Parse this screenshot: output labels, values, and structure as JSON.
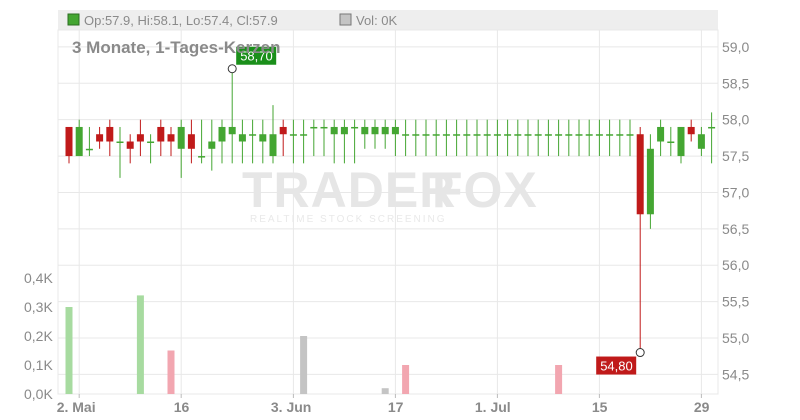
{
  "header": {
    "ohlc": "Op:57.9, Hi:58.1, Lo:57.4, Cl:57.9",
    "vol": "Vol: 0K",
    "subtitle": "3 Monate, 1-Tages-Kerzen"
  },
  "watermark": {
    "brand_left": "TRADER",
    "brand_right": "FOX",
    "tagline": "REALTIME STOCK SCREENING"
  },
  "colors": {
    "up": "#44a632",
    "down": "#c01a1a",
    "grid": "#e8e8e8",
    "vol_up": "#a7dba0",
    "vol_down": "#f2a6b0",
    "vol_neutral": "#c4c4c4",
    "header_bg": "#eeeeee",
    "text": "#8a8a8a"
  },
  "chart_data": {
    "type": "candlestick",
    "title": "3 Monate, 1-Tages-Kerzen",
    "price_axis": {
      "ticks": [
        "59,0",
        "58,5",
        "58,0",
        "57,5",
        "57,0",
        "56,5",
        "56,0",
        "55,5",
        "55,0",
        "54,5"
      ],
      "min": 54.45,
      "max": 59.15
    },
    "volume_axis": {
      "ticks": [
        "0,4K",
        "0,3K",
        "0,2K",
        "0,1K",
        "0,0K"
      ],
      "max": 0.4
    },
    "x_ticks": [
      "2. Mai",
      "16",
      "3. Jun",
      "17",
      "1. Jul",
      "15",
      "29"
    ],
    "x_tick_index": [
      1,
      11,
      22,
      32,
      42,
      52,
      62
    ],
    "annotations": [
      {
        "label": "58,70",
        "value": 58.7,
        "index": 16,
        "type": "high"
      },
      {
        "label": "54,80",
        "value": 54.8,
        "index": 56,
        "type": "low"
      }
    ],
    "candles": [
      [
        57.9,
        57.9,
        57.4,
        57.5
      ],
      [
        57.5,
        58.0,
        57.5,
        57.9
      ],
      [
        57.6,
        57.9,
        57.5,
        57.6
      ],
      [
        57.8,
        57.9,
        57.6,
        57.7
      ],
      [
        57.9,
        58.0,
        57.5,
        57.7
      ],
      [
        57.7,
        57.9,
        57.2,
        57.7
      ],
      [
        57.7,
        57.8,
        57.4,
        57.6
      ],
      [
        57.8,
        58.0,
        57.5,
        57.7
      ],
      [
        57.7,
        57.8,
        57.4,
        57.7
      ],
      [
        57.9,
        58.0,
        57.5,
        57.7
      ],
      [
        57.8,
        57.9,
        57.5,
        57.7
      ],
      [
        57.6,
        58.0,
        57.2,
        57.9
      ],
      [
        57.8,
        58.0,
        57.4,
        57.6
      ],
      [
        57.5,
        58.0,
        57.4,
        57.5
      ],
      [
        57.6,
        58.0,
        57.3,
        57.7
      ],
      [
        57.7,
        58.0,
        57.4,
        57.9
      ],
      [
        57.8,
        58.7,
        57.4,
        57.9
      ],
      [
        57.7,
        58.0,
        57.4,
        57.8
      ],
      [
        57.8,
        58.0,
        57.4,
        57.8
      ],
      [
        57.7,
        58.0,
        57.4,
        57.8
      ],
      [
        57.5,
        58.2,
        57.4,
        57.8
      ],
      [
        57.9,
        58.0,
        57.5,
        57.8
      ],
      [
        57.8,
        58.0,
        57.4,
        57.8
      ],
      [
        57.8,
        58.0,
        57.4,
        57.8
      ],
      [
        57.9,
        58.0,
        57.5,
        57.9
      ],
      [
        57.9,
        58.0,
        57.5,
        57.9
      ],
      [
        57.8,
        58.0,
        57.4,
        57.9
      ],
      [
        57.8,
        58.0,
        57.4,
        57.9
      ],
      [
        57.9,
        58.0,
        57.4,
        57.9
      ],
      [
        57.8,
        58.0,
        57.6,
        57.9
      ],
      [
        57.8,
        58.0,
        57.6,
        57.9
      ],
      [
        57.8,
        58.0,
        57.6,
        57.9
      ],
      [
        57.8,
        58.0,
        57.5,
        57.9
      ],
      [
        57.8,
        58.0,
        57.5,
        57.8
      ],
      [
        57.8,
        58.0,
        57.5,
        57.8
      ],
      [
        57.8,
        58.0,
        57.5,
        57.8
      ],
      [
        57.8,
        58.0,
        57.5,
        57.8
      ],
      [
        57.8,
        58.0,
        57.5,
        57.8
      ],
      [
        57.8,
        58.0,
        57.5,
        57.8
      ],
      [
        57.8,
        58.0,
        57.5,
        57.8
      ],
      [
        57.8,
        58.0,
        57.5,
        57.8
      ],
      [
        57.8,
        58.0,
        57.5,
        57.8
      ],
      [
        57.8,
        58.0,
        57.5,
        57.8
      ],
      [
        57.8,
        58.0,
        57.5,
        57.8
      ],
      [
        57.8,
        58.0,
        57.5,
        57.8
      ],
      [
        57.8,
        58.0,
        57.5,
        57.8
      ],
      [
        57.8,
        58.0,
        57.5,
        57.8
      ],
      [
        57.8,
        58.0,
        57.5,
        57.8
      ],
      [
        57.8,
        58.0,
        57.5,
        57.8
      ],
      [
        57.8,
        58.0,
        57.5,
        57.8
      ],
      [
        57.8,
        58.0,
        57.5,
        57.8
      ],
      [
        57.8,
        58.0,
        57.5,
        57.8
      ],
      [
        57.8,
        58.0,
        57.5,
        57.8
      ],
      [
        57.8,
        58.0,
        57.5,
        57.8
      ],
      [
        57.8,
        58.0,
        57.5,
        57.8
      ],
      [
        57.8,
        58.0,
        57.5,
        57.8
      ],
      [
        57.8,
        57.9,
        54.8,
        56.7
      ],
      [
        56.7,
        57.8,
        56.5,
        57.6
      ],
      [
        57.7,
        58.0,
        57.5,
        57.9
      ],
      [
        57.7,
        57.9,
        57.5,
        57.7
      ],
      [
        57.5,
        57.9,
        57.4,
        57.9
      ],
      [
        57.9,
        58.0,
        57.7,
        57.8
      ],
      [
        57.6,
        57.9,
        57.5,
        57.8
      ],
      [
        57.9,
        58.1,
        57.4,
        57.9
      ]
    ],
    "volume": [
      [
        0,
        0.3,
        "up"
      ],
      [
        7,
        0.34,
        "up"
      ],
      [
        10,
        0.15,
        "down"
      ],
      [
        23,
        0.2,
        "neutral"
      ],
      [
        31,
        0.02,
        "neutral"
      ],
      [
        33,
        0.1,
        "down"
      ],
      [
        48,
        0.1,
        "down"
      ]
    ]
  }
}
